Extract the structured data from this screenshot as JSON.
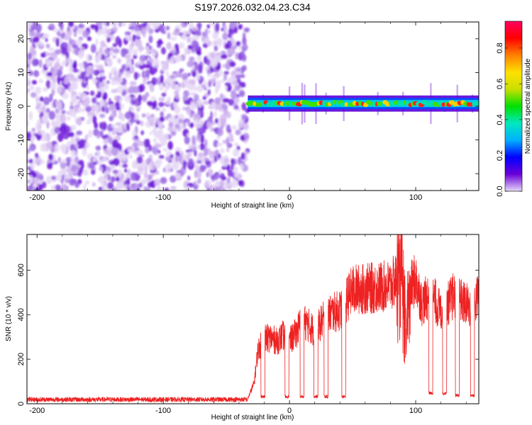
{
  "title": "S197.2026.032.04.23.C34",
  "chart_data": [
    {
      "type": "heatmap",
      "name": "spectrogram",
      "xlabel": "Height of straight line (km)",
      "ylabel": "Frequency (Hz)",
      "xlim": [
        -208,
        150
      ],
      "ylim": [
        -25,
        25
      ],
      "xticks": [
        -200,
        -100,
        0,
        100
      ],
      "yticks": [
        -20,
        -10,
        0,
        10,
        20
      ],
      "noise_region": {
        "x": [
          -208,
          -33
        ],
        "y": [
          -25,
          25
        ]
      },
      "signal_band": {
        "x": [
          -33,
          150
        ],
        "center_hz": 0.8,
        "width_hz": 3
      },
      "colorbar": {
        "label": "Normalized spectral amplitude",
        "range": [
          0,
          0.95
        ],
        "ticks": [
          0.0,
          0.2,
          0.4,
          0.6,
          0.8
        ],
        "tick_labels": [
          "0.0",
          "0.2",
          "0.4",
          "0.6",
          "0.8"
        ],
        "stops": [
          "#e8d8f8",
          "#6a00d8",
          "#0000ff",
          "#00b0ff",
          "#00e8c0",
          "#00e000",
          "#c8e000",
          "#ffe000",
          "#ff8000",
          "#ff0000",
          "#ff0060"
        ]
      }
    },
    {
      "type": "line",
      "name": "snr",
      "xlabel": "Height of straight line (km)",
      "ylabel": "SNR (10 * v/v)",
      "xlim": [
        -208,
        150
      ],
      "ylim": [
        0,
        760
      ],
      "xticks": [
        -200,
        -100,
        0,
        100
      ],
      "yticks": [
        0,
        200,
        400,
        600
      ],
      "color": "#ee2222",
      "series": [
        {
          "name": "SNR",
          "x": [
            -208,
            -150,
            -100,
            -50,
            -33,
            -28,
            -25,
            -20,
            -15,
            -10,
            -5,
            0,
            5,
            10,
            15,
            20,
            25,
            30,
            35,
            40,
            45,
            50,
            60,
            70,
            80,
            85,
            88,
            92,
            96,
            100,
            105,
            110,
            115,
            120,
            125,
            130,
            135,
            140,
            145,
            150
          ],
          "values": [
            20,
            20,
            22,
            20,
            25,
            100,
            260,
            310,
            320,
            300,
            330,
            300,
            340,
            400,
            380,
            350,
            390,
            430,
            440,
            450,
            500,
            550,
            555,
            560,
            570,
            600,
            680,
            340,
            560,
            600,
            480,
            520,
            500,
            440,
            480,
            520,
            500,
            480,
            460,
            530
          ]
        },
        {
          "name": "dropouts",
          "x": [
            -21,
            -2,
            10,
            21,
            29,
            43,
            112,
            123,
            133,
            145
          ],
          "values": [
            25,
            25,
            25,
            25,
            25,
            25,
            40,
            40,
            30,
            30
          ]
        }
      ]
    }
  ]
}
